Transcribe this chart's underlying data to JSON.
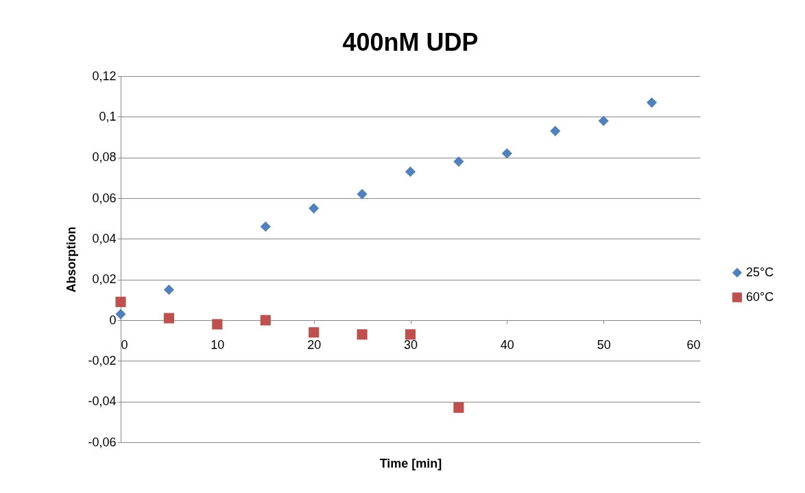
{
  "chart_data": {
    "type": "scatter",
    "title": "400nM UDP",
    "xlabel": "Time [min]",
    "ylabel": "Absorption",
    "series": [
      {
        "name": "25°C",
        "color": "#4f81bd",
        "marker": "diamond",
        "x": [
          0,
          5,
          15,
          20,
          25,
          30,
          35,
          40,
          45,
          50,
          55
        ],
        "values": [
          0.003,
          0.015,
          0.046,
          0.055,
          0.062,
          0.073,
          0.078,
          0.082,
          0.093,
          0.098,
          0.107
        ]
      },
      {
        "name": "60°C",
        "color": "#c0504d",
        "marker": "square",
        "x": [
          0,
          5,
          10,
          15,
          20,
          25,
          30,
          35
        ],
        "values": [
          0.009,
          0.001,
          -0.002,
          0,
          -0.006,
          -0.007,
          -0.007,
          -0.043
        ]
      }
    ],
    "xlim": [
      0,
      60
    ],
    "xticks": [
      0,
      10,
      20,
      30,
      40,
      50,
      60
    ],
    "ylim": [
      -0.06,
      0.12
    ],
    "yticks": [
      {
        "value": -0.06,
        "label": "-0,06"
      },
      {
        "value": -0.04,
        "label": "-0,04"
      },
      {
        "value": -0.02,
        "label": "-0,02"
      },
      {
        "value": 0,
        "label": "0"
      },
      {
        "value": 0.02,
        "label": "0,02"
      },
      {
        "value": 0.04,
        "label": "0,04"
      },
      {
        "value": 0.06,
        "label": "0,06"
      },
      {
        "value": 0.08,
        "label": "0,08"
      },
      {
        "value": 0.1,
        "label": "0,1"
      },
      {
        "value": 0.12,
        "label": "0,12"
      }
    ],
    "grid": "y",
    "legend": "right"
  }
}
